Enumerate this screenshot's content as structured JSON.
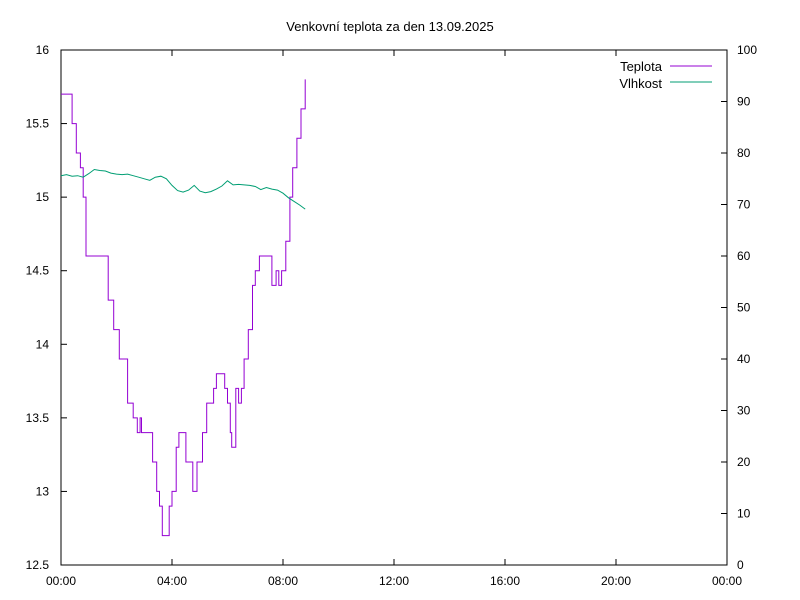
{
  "chart_data": {
    "type": "line",
    "title": "Venkovní teplota za den 13.09.2025",
    "x_ticks": [
      "00:00",
      "04:00",
      "08:00",
      "12:00",
      "16:00",
      "20:00",
      "00:00"
    ],
    "x_range_hours": [
      0,
      24
    ],
    "y_left": {
      "range": [
        12.5,
        16
      ],
      "ticks": [
        "12.5",
        "13",
        "13.5",
        "14",
        "14.5",
        "15",
        "15.5",
        "16"
      ]
    },
    "y_right": {
      "range": [
        0,
        100
      ],
      "ticks": [
        "0",
        "10",
        "20",
        "30",
        "40",
        "50",
        "60",
        "70",
        "80",
        "90",
        "100"
      ]
    },
    "grid": false,
    "legend_position": "top-right",
    "series": [
      {
        "name": "Teplota",
        "axis": "left",
        "color": "#9400d3",
        "x_hours": [
          0.0,
          0.25,
          0.4,
          0.55,
          0.7,
          0.8,
          0.9,
          1.0,
          1.5,
          1.7,
          1.9,
          2.1,
          2.4,
          2.6,
          2.75,
          2.85,
          2.9,
          3.0,
          3.3,
          3.45,
          3.55,
          3.65,
          3.7,
          3.8,
          3.9,
          4.0,
          4.15,
          4.25,
          4.35,
          4.5,
          4.6,
          4.75,
          4.9,
          5.1,
          5.25,
          5.5,
          5.6,
          5.8,
          5.9,
          6.0,
          6.1,
          6.15,
          6.3,
          6.4,
          6.5,
          6.6,
          6.75,
          6.9,
          7.0,
          7.15,
          7.3,
          7.45,
          7.6,
          7.75,
          7.85,
          7.95,
          8.1,
          8.25,
          8.35,
          8.5,
          8.65,
          8.8
        ],
        "y": [
          15.7,
          15.7,
          15.5,
          15.3,
          15.2,
          15.0,
          14.6,
          14.6,
          14.6,
          14.3,
          14.1,
          13.9,
          13.6,
          13.5,
          13.4,
          13.5,
          13.4,
          13.4,
          13.2,
          13.0,
          12.9,
          12.7,
          12.7,
          12.7,
          12.9,
          13.0,
          13.3,
          13.4,
          13.4,
          13.2,
          13.2,
          13.0,
          13.2,
          13.4,
          13.6,
          13.7,
          13.8,
          13.8,
          13.7,
          13.6,
          13.4,
          13.3,
          13.7,
          13.6,
          13.7,
          13.9,
          14.1,
          14.4,
          14.5,
          14.6,
          14.6,
          14.6,
          14.4,
          14.5,
          14.4,
          14.5,
          14.7,
          15.0,
          15.2,
          15.4,
          15.6,
          15.8
        ]
      },
      {
        "name": "Vlhkost",
        "axis": "right",
        "color": "#009e73",
        "x_hours": [
          0.0,
          0.2,
          0.4,
          0.6,
          0.8,
          1.0,
          1.2,
          1.4,
          1.6,
          1.8,
          2.0,
          2.2,
          2.4,
          2.6,
          2.8,
          3.0,
          3.2,
          3.4,
          3.6,
          3.8,
          4.0,
          4.2,
          4.4,
          4.6,
          4.8,
          5.0,
          5.2,
          5.4,
          5.6,
          5.8,
          6.0,
          6.2,
          6.4,
          6.6,
          6.8,
          7.0,
          7.2,
          7.4,
          7.6,
          7.8,
          8.0,
          8.2,
          8.4,
          8.6,
          8.8
        ],
        "y": [
          75.6,
          75.8,
          75.5,
          75.6,
          75.3,
          76.0,
          76.8,
          76.6,
          76.5,
          76.1,
          75.9,
          75.8,
          75.9,
          75.6,
          75.3,
          75.0,
          74.7,
          75.3,
          75.5,
          75.0,
          73.7,
          72.7,
          72.4,
          72.8,
          73.7,
          72.6,
          72.3,
          72.5,
          73.0,
          73.6,
          74.6,
          73.8,
          73.9,
          73.8,
          73.7,
          73.5,
          72.9,
          73.3,
          73.0,
          72.8,
          72.2,
          71.3,
          70.6,
          69.9,
          69.1
        ]
      }
    ]
  }
}
